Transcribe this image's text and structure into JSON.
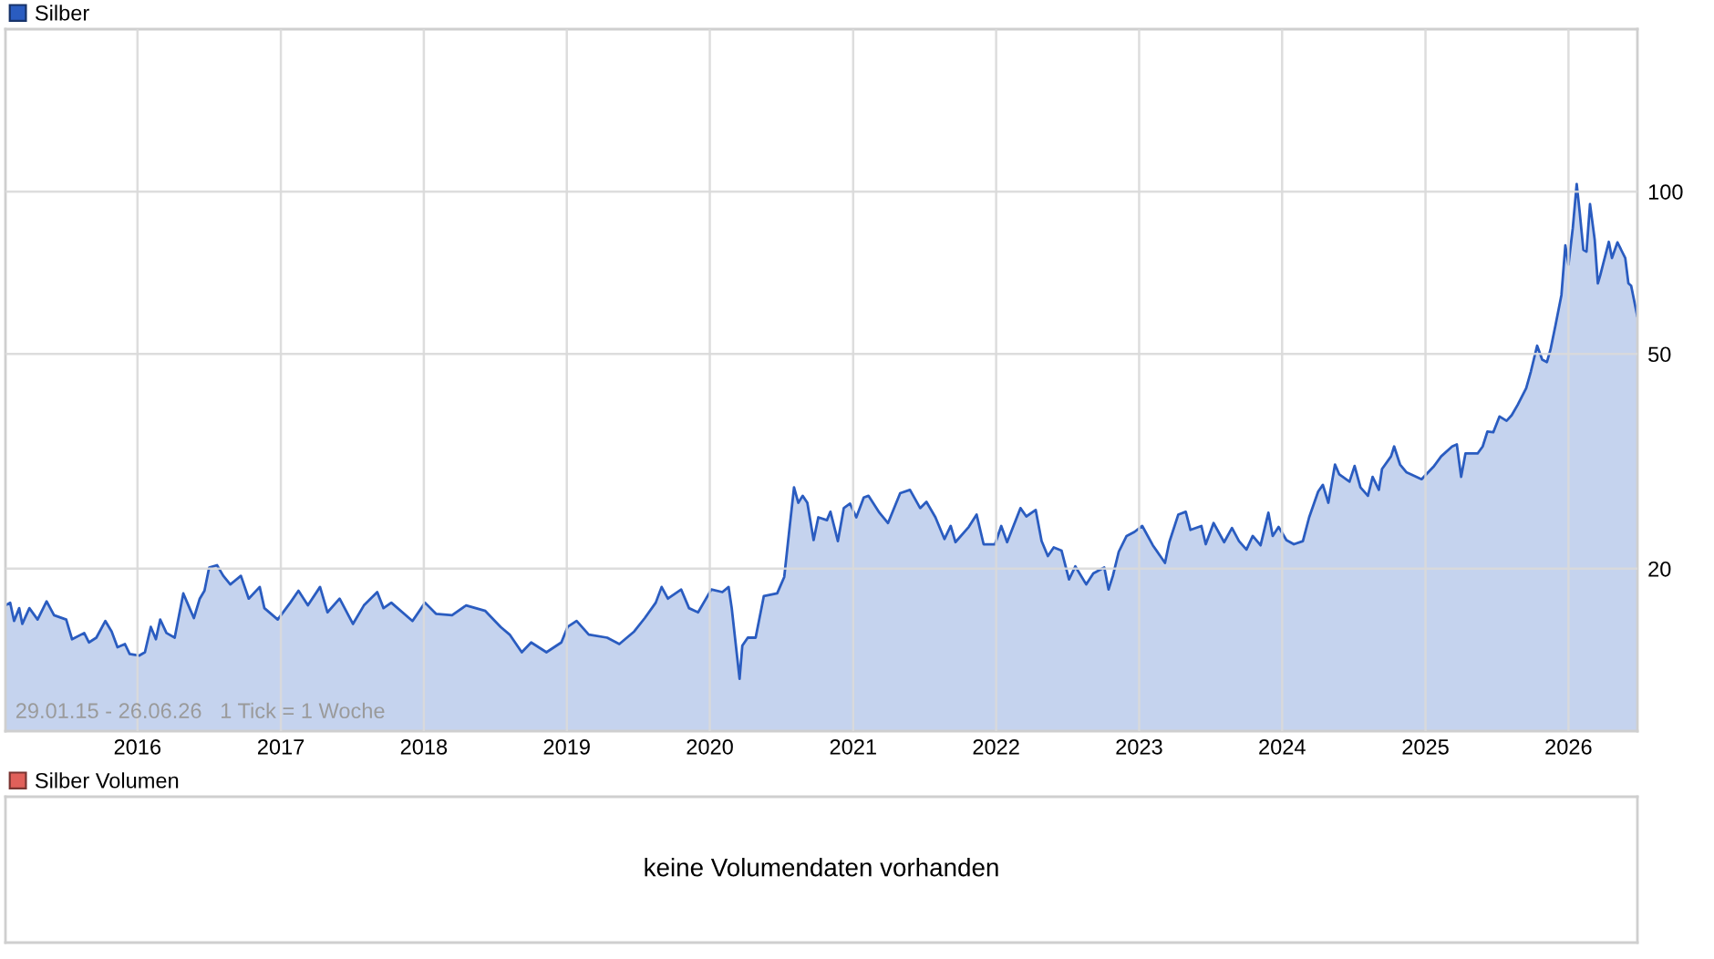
{
  "chart_data": [
    {
      "type": "area",
      "log": true,
      "grid": true,
      "legend": "top left",
      "xlim": [
        "2015-01-29",
        "2026-06-26"
      ],
      "ylim": [
        10,
        200
      ],
      "yticks": [
        20,
        50,
        100
      ],
      "xticks": [
        {
          "value": "2016-01-01",
          "label": "2016"
        },
        {
          "value": "2017-01-01",
          "label": "2017"
        },
        {
          "value": "2018-01-01",
          "label": "2018"
        },
        {
          "value": "2019-01-01",
          "label": "2019"
        },
        {
          "value": "2020-01-01",
          "label": "2020"
        },
        {
          "value": "2021-01-01",
          "label": "2021"
        },
        {
          "value": "2022-01-01",
          "label": "2022"
        },
        {
          "value": "2023-01-01",
          "label": "2023"
        },
        {
          "value": "2024-01-01",
          "label": "2024"
        },
        {
          "value": "2025-01-01",
          "label": "2025"
        },
        {
          "value": "2026-01-01",
          "label": "2026"
        }
      ],
      "annotations": [
        "29.01.15 - 26.06.26   1 Tick = 1 Woche"
      ],
      "series": [
        {
          "name": "Silber",
          "color": "#2a5cc0",
          "x": [
            "2015-01-29",
            "2015-02-10",
            "2015-02-20",
            "2015-03-05",
            "2015-03-13",
            "2015-03-31",
            "2015-04-21",
            "2015-05-14",
            "2015-06-02",
            "2015-07-03",
            "2015-07-18",
            "2015-08-18",
            "2015-08-30",
            "2015-09-18",
            "2015-10-11",
            "2015-10-27",
            "2015-11-11",
            "2015-11-30",
            "2015-12-12",
            "2016-01-05",
            "2016-01-20",
            "2016-02-04",
            "2016-02-17",
            "2016-02-28",
            "2016-03-15",
            "2016-04-05",
            "2016-04-27",
            "2016-05-13",
            "2016-05-24",
            "2016-06-08",
            "2016-06-20",
            "2016-07-02",
            "2016-07-22",
            "2016-08-07",
            "2016-08-25",
            "2016-09-21",
            "2016-10-11",
            "2016-11-08",
            "2016-11-20",
            "2016-12-24",
            "2017-01-25",
            "2017-02-15",
            "2017-03-11",
            "2017-04-11",
            "2017-04-30",
            "2017-05-31",
            "2017-07-04",
            "2017-08-01",
            "2017-09-04",
            "2017-09-20",
            "2017-10-10",
            "2017-12-03",
            "2018-01-04",
            "2018-02-01",
            "2018-03-14",
            "2018-04-19",
            "2018-06-07",
            "2018-07-16",
            "2018-08-08",
            "2018-09-08",
            "2018-10-02",
            "2018-11-10",
            "2018-12-18",
            "2019-01-03",
            "2019-01-26",
            "2019-02-26",
            "2019-04-14",
            "2019-05-15",
            "2019-06-22",
            "2019-07-19",
            "2019-08-16",
            "2019-08-31",
            "2019-09-16",
            "2019-10-20",
            "2019-11-09",
            "2019-12-02",
            "2020-01-05",
            "2020-02-02",
            "2020-02-18",
            "2020-02-26",
            "2020-03-17",
            "2020-03-24",
            "2020-04-07",
            "2020-04-27",
            "2020-05-18",
            "2020-06-21",
            "2020-07-09",
            "2020-07-22",
            "2020-08-03",
            "2020-08-14",
            "2020-08-25",
            "2020-09-06",
            "2020-09-22",
            "2020-10-04",
            "2020-10-26",
            "2020-11-04",
            "2020-11-23",
            "2020-12-08",
            "2020-12-24",
            "2021-01-09",
            "2021-01-28",
            "2021-02-09",
            "2021-03-09",
            "2021-03-31",
            "2021-05-01",
            "2021-05-26",
            "2021-06-21",
            "2021-07-07",
            "2021-07-30",
            "2021-08-22",
            "2021-09-07",
            "2021-09-19",
            "2021-10-23",
            "2021-11-12",
            "2021-11-30",
            "2021-12-29",
            "2022-01-14",
            "2022-01-29",
            "2022-03-04",
            "2022-03-19",
            "2022-04-12",
            "2022-04-27",
            "2022-05-13",
            "2022-05-28",
            "2022-06-17",
            "2022-07-06",
            "2022-07-22",
            "2022-08-19",
            "2022-09-06",
            "2022-10-04",
            "2022-10-15",
            "2022-10-26",
            "2022-11-10",
            "2022-11-30",
            "2022-12-20",
            "2023-01-09",
            "2023-02-05",
            "2023-03-08",
            "2023-03-19",
            "2023-04-11",
            "2023-04-30",
            "2023-05-12",
            "2023-06-09",
            "2023-06-20",
            "2023-07-10",
            "2023-08-06",
            "2023-08-26",
            "2023-09-13",
            "2023-10-02",
            "2023-10-18",
            "2023-11-07",
            "2023-11-27",
            "2023-12-08",
            "2023-12-23",
            "2024-01-12",
            "2024-01-31",
            "2024-02-23",
            "2024-03-10",
            "2024-04-02",
            "2024-04-14",
            "2024-04-28",
            "2024-05-15",
            "2024-05-26",
            "2024-06-21",
            "2024-07-04",
            "2024-07-19",
            "2024-08-07",
            "2024-08-19",
            "2024-09-04",
            "2024-09-12",
            "2024-10-05",
            "2024-10-13",
            "2024-10-28",
            "2024-11-13",
            "2024-12-22",
            "2025-01-23",
            "2025-02-10",
            "2025-03-10",
            "2025-03-22",
            "2025-04-02",
            "2025-04-13",
            "2025-05-14",
            "2025-05-27",
            "2025-06-08",
            "2025-06-23",
            "2025-07-09",
            "2025-07-27",
            "2025-08-09",
            "2025-08-24",
            "2025-09-15",
            "2025-09-27",
            "2025-10-13",
            "2025-10-26",
            "2025-11-07",
            "2025-11-16",
            "2025-11-29",
            "2025-12-14",
            "2025-12-24",
            "2026-01-01",
            "2026-01-12",
            "2026-01-22",
            "2026-01-30",
            "2026-02-08",
            "2026-02-16",
            "2026-02-25",
            "2026-03-09",
            "2026-03-17",
            "2026-03-23",
            "2026-04-14",
            "2026-04-22",
            "2026-05-06",
            "2026-05-26",
            "2026-06-03",
            "2026-06-10",
            "2026-06-26"
          ],
          "values": [
            17.1,
            17.3,
            16.0,
            16.9,
            15.8,
            16.9,
            16.1,
            17.4,
            16.4,
            16.1,
            14.8,
            15.2,
            14.6,
            14.9,
            16.0,
            15.3,
            14.3,
            14.5,
            13.9,
            13.8,
            14.0,
            15.6,
            14.8,
            16.1,
            15.2,
            14.9,
            18.0,
            16.9,
            16.2,
            17.6,
            18.2,
            20.1,
            20.3,
            19.4,
            18.7,
            19.4,
            17.6,
            18.5,
            16.9,
            16.1,
            17.3,
            18.2,
            17.1,
            18.5,
            16.6,
            17.6,
            15.8,
            17.1,
            18.1,
            16.9,
            17.3,
            16.0,
            17.3,
            16.5,
            16.4,
            17.1,
            16.7,
            15.6,
            15.1,
            14.0,
            14.6,
            14.0,
            14.6,
            15.6,
            16.0,
            15.1,
            14.9,
            14.5,
            15.3,
            16.2,
            17.3,
            18.5,
            17.6,
            18.3,
            16.9,
            16.6,
            18.3,
            18.1,
            18.5,
            16.9,
            12.5,
            14.4,
            14.9,
            14.9,
            17.8,
            18.0,
            19.3,
            23.6,
            28.3,
            26.5,
            27.3,
            26.5,
            22.6,
            24.9,
            24.6,
            25.5,
            22.5,
            25.9,
            26.4,
            24.9,
            27.1,
            27.3,
            25.4,
            24.3,
            27.6,
            28.0,
            25.9,
            26.6,
            24.9,
            22.7,
            24.0,
            22.4,
            23.9,
            25.2,
            22.2,
            22.2,
            24.0,
            22.4,
            25.9,
            25.0,
            25.7,
            22.5,
            21.1,
            21.9,
            21.6,
            19.1,
            20.2,
            18.7,
            19.6,
            20.1,
            18.3,
            19.4,
            21.5,
            23.0,
            23.4,
            24.0,
            22.1,
            20.5,
            22.4,
            25.2,
            25.5,
            23.6,
            24.0,
            22.2,
            24.3,
            22.4,
            23.8,
            22.5,
            21.7,
            23.0,
            22.1,
            25.4,
            23.0,
            23.9,
            22.6,
            22.2,
            22.5,
            24.9,
            27.8,
            28.6,
            26.5,
            31.2,
            29.9,
            29.0,
            31.0,
            28.3,
            27.3,
            29.6,
            28.0,
            30.6,
            32.3,
            33.7,
            31.2,
            30.2,
            29.3,
            31.0,
            32.3,
            33.7,
            34.0,
            29.6,
            32.7,
            32.7,
            33.7,
            35.9,
            35.8,
            38.3,
            37.6,
            38.5,
            40.2,
            43.2,
            46.4,
            51.8,
            48.8,
            48.3,
            50.9,
            56.6,
            64.3,
            79.5,
            73.2,
            85.6,
            103.3,
            91.1,
            78.0,
            77.4,
            94.8,
            81.4,
            67.6,
            69.9,
            80.7,
            75.3,
            80.5,
            75.3,
            67.6,
            66.9,
            58.6
          ]
        }
      ]
    },
    {
      "type": "other",
      "legend": "top left",
      "annotations": [
        "keine Volumendaten vorhanden"
      ],
      "series": [
        {
          "name": "Silber Volumen",
          "color": "#e0605a"
        }
      ]
    }
  ]
}
